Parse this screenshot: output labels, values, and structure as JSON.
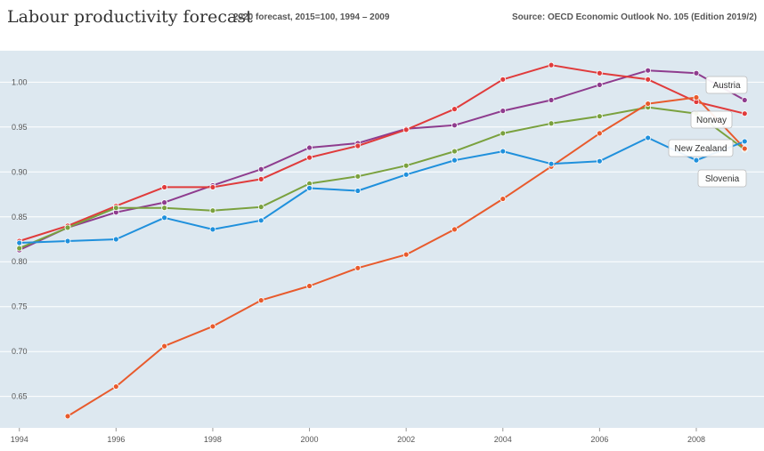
{
  "header": {
    "title": "Labour productivity forecast",
    "subtitle": "2020 forecast, 2015=100, 1994 – 2009",
    "source": "Source: OECD Economic Outlook No. 105 (Edition 2019/2)"
  },
  "chart_data": {
    "type": "line",
    "title": "Labour productivity forecast",
    "subtitle": "2020 forecast, 2015=100, 1994 – 2009",
    "xlabel": "",
    "ylabel": "",
    "xlim": [
      1993.6,
      2009.4
    ],
    "ylim": [
      0.615,
      1.035
    ],
    "xticks": [
      1994,
      1996,
      1998,
      2000,
      2002,
      2004,
      2006,
      2008
    ],
    "yticks": [
      0.65,
      0.7,
      0.75,
      0.8,
      0.85,
      0.9,
      0.95,
      1.0
    ],
    "ytick_labels": [
      "0.65",
      "0.70",
      "0.75",
      "0.80",
      "0.85",
      "0.90",
      "0.95",
      "1.00"
    ],
    "grid": "horizontal",
    "x": [
      1994,
      1995,
      1996,
      1997,
      1998,
      1999,
      2000,
      2001,
      2002,
      2003,
      2004,
      2005,
      2006,
      2007,
      2008,
      2009
    ],
    "series": [
      {
        "name": "Austria",
        "color": "#8e3c8e",
        "values": [
          0.813,
          0.838,
          0.855,
          0.866,
          0.885,
          0.903,
          0.927,
          0.932,
          0.948,
          0.952,
          0.968,
          0.98,
          0.997,
          1.013,
          1.01,
          0.98
        ]
      },
      {
        "name": "Norway",
        "color": "#e03b3b",
        "values": [
          0.823,
          0.84,
          0.862,
          0.883,
          0.883,
          0.892,
          0.916,
          0.929,
          0.947,
          0.97,
          1.003,
          1.019,
          1.01,
          1.003,
          0.978,
          0.965
        ]
      },
      {
        "name": "New Zealand",
        "color": "#7aa13e",
        "values": [
          0.815,
          0.838,
          0.86,
          0.86,
          0.857,
          0.861,
          0.887,
          0.895,
          0.907,
          0.923,
          0.943,
          0.954,
          0.962,
          0.972,
          0.965,
          0.925
        ]
      },
      {
        "name": "Slovenia",
        "color": "#e85a2c",
        "values": [
          null,
          0.628,
          0.661,
          0.706,
          0.728,
          0.757,
          0.773,
          0.793,
          0.808,
          0.836,
          0.87,
          0.906,
          0.943,
          0.976,
          0.983,
          0.926
        ]
      },
      {
        "name": "",
        "color": "#1f90dc",
        "values": [
          0.821,
          0.823,
          0.825,
          0.849,
          0.836,
          0.846,
          0.882,
          0.879,
          0.897,
          0.913,
          0.923,
          0.909,
          0.912,
          0.938,
          0.913,
          0.934
        ]
      }
    ],
    "annotations": [
      "Austria",
      "Norway",
      "New Zealand",
      "Slovenia"
    ]
  }
}
